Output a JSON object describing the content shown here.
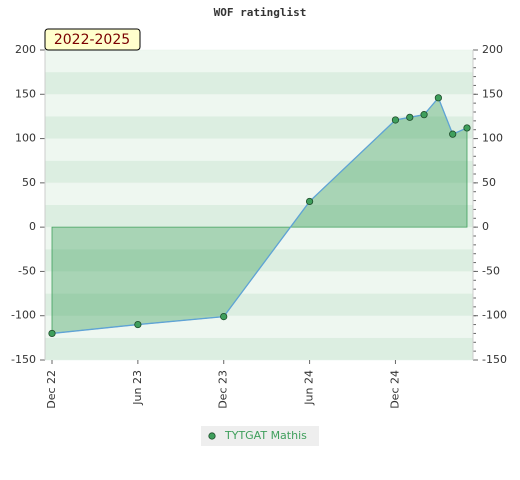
{
  "chart_data": {
    "type": "area",
    "title": "WOF ratinglist",
    "annotation": "2022-2025",
    "x": [
      "Dec 22",
      "Jun 23",
      "Dec 23",
      "Jun 24",
      "Dec 24",
      "Jan 25",
      "Feb 25",
      "Mar 25",
      "Apr 25",
      "May 25"
    ],
    "xticks": [
      "Dec 22",
      "Jun 23",
      "Dec 23",
      "Jun 24",
      "Dec 24"
    ],
    "series": [
      {
        "name": "TYTGAT Mathis",
        "color": "#3f9f5c",
        "line_color": "#5fa3d6",
        "values": [
          -120,
          -110,
          -101,
          29,
          121,
          124,
          127,
          146,
          105,
          112
        ]
      }
    ],
    "ylim": [
      -150,
      200
    ],
    "yticks": [
      -150,
      -100,
      -50,
      0,
      50,
      100,
      150,
      200
    ],
    "y2lim": [
      -150,
      200
    ],
    "y2ticks": [
      -150,
      -100,
      -50,
      0,
      50,
      100,
      150,
      200
    ],
    "grid": true
  }
}
